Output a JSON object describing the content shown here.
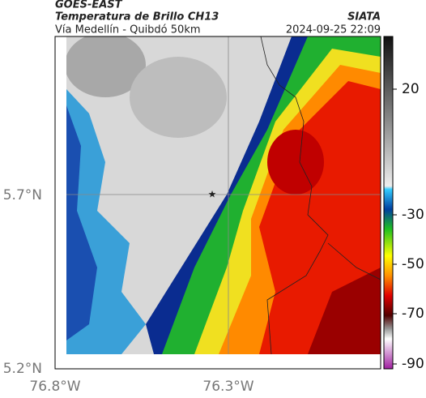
{
  "header": {
    "source": "GOES-EAST",
    "title": "Temperatura de Brillo CH13",
    "route": "Vía Medellín - Quibdó 50km",
    "brand": "SIATA",
    "datetime": "2024-09-25 22:09"
  },
  "axes": {
    "lat_labels": [
      "5.7°N",
      "5.2°N"
    ],
    "lon_labels": [
      "76.8°W",
      "76.3°W"
    ]
  },
  "colorbar": {
    "ticks": [
      "20",
      "-30",
      "-50",
      "-70",
      "-90"
    ]
  }
}
